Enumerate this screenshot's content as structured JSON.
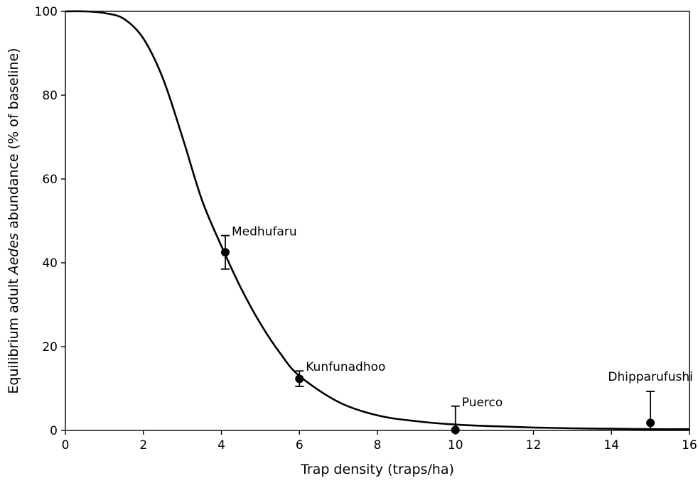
{
  "chart_data": {
    "type": "line",
    "title": "",
    "xlabel": "Trap density (traps/ha)",
    "ylabel": {
      "prefix": "Equilibrium adult ",
      "italic": "Aedes",
      "suffix": " abundance (% of baseline)"
    },
    "xlim": [
      0,
      16
    ],
    "ylim": [
      0,
      100
    ],
    "x_ticks": [
      "0",
      "2",
      "4",
      "6",
      "8",
      "10",
      "12",
      "14",
      "16"
    ],
    "y_ticks": [
      "0",
      "20",
      "40",
      "60",
      "80",
      "100"
    ],
    "grid": false,
    "legend": "none",
    "line_color": "#000000",
    "marker_color": "#000000",
    "model_curve": {
      "x": [
        0,
        0.5,
        1,
        1.5,
        2,
        2.5,
        3,
        3.5,
        4,
        4.5,
        5,
        5.5,
        6,
        7,
        8,
        9,
        10,
        11,
        12,
        13,
        14,
        15,
        16
      ],
      "y": [
        100,
        100,
        99.6,
        98.2,
        93.5,
        84,
        70,
        55,
        44,
        34,
        25.5,
        18.5,
        13,
        6.8,
        3.6,
        2.2,
        1.4,
        1.0,
        0.7,
        0.5,
        0.4,
        0.3,
        0.3
      ]
    },
    "observations": [
      {
        "label": "Medhufaru",
        "x": 4.1,
        "y": 42.5,
        "lower": 38.5,
        "upper": 46.5,
        "label_pos": "right-above"
      },
      {
        "label": "Kunfunadhoo",
        "x": 6.0,
        "y": 12.3,
        "lower": 10.5,
        "upper": 14.2,
        "label_pos": "right-above"
      },
      {
        "label": "Puerco",
        "x": 10.0,
        "y": 0.1,
        "lower": 0.0,
        "upper": 5.8,
        "label_pos": "right-above"
      },
      {
        "label": "Dhipparufushi",
        "x": 15.0,
        "y": 1.8,
        "lower": 0.0,
        "upper": 9.3,
        "label_pos": "above"
      }
    ]
  }
}
